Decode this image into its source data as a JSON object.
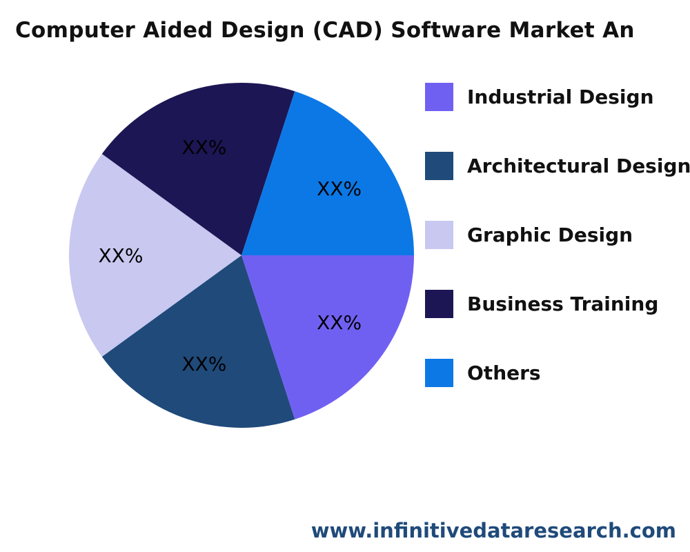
{
  "chart_data": {
    "type": "pie",
    "title": "Computer Aided Design (CAD) Software Market An",
    "slices": [
      {
        "label": "Industrial Design",
        "value": 20,
        "display": "XX%",
        "color": "#7060F2"
      },
      {
        "label": "Architectural Design",
        "value": 20,
        "display": "XX%",
        "color": "#1F4A7A"
      },
      {
        "label": "Graphic Design",
        "value": 20,
        "display": "XX%",
        "color": "#C8C8F0"
      },
      {
        "label": "Business Training",
        "value": 20,
        "display": "XX%",
        "color": "#1C1654"
      },
      {
        "label": "Others",
        "value": 20,
        "display": "XX%",
        "color": "#0C78E6"
      }
    ],
    "legend_placement": "right"
  },
  "watermark": "www.infinitivedataresearch.com"
}
